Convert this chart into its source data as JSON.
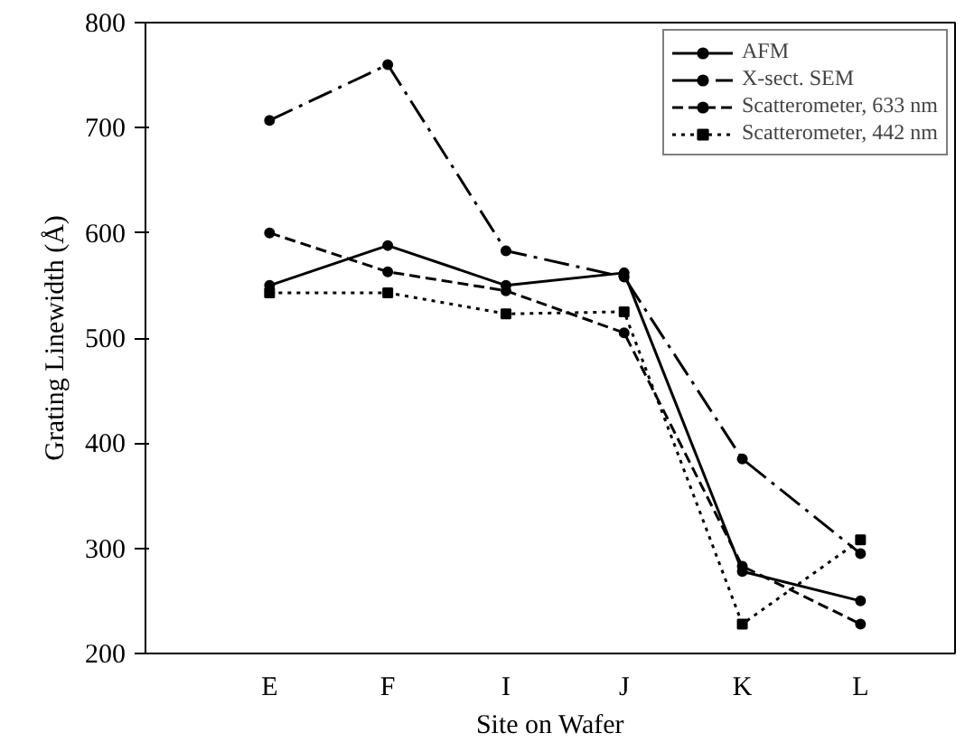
{
  "chart_data": {
    "type": "line",
    "xlabel": "Site on Wafer",
    "ylabel": "Grating Linewidth (Å)",
    "categories": [
      "E",
      "F",
      "I",
      "J",
      "K",
      "L"
    ],
    "ylim": [
      200,
      800
    ],
    "yticks": [
      200,
      300,
      400,
      500,
      600,
      700,
      800
    ],
    "grid": false,
    "legend": "top right",
    "series": [
      {
        "name": "AFM",
        "color": "#000000",
        "line_style": "solid",
        "marker": "circle",
        "values": [
          550,
          588,
          550,
          562,
          278,
          250
        ]
      },
      {
        "name": "X-sect. SEM",
        "color": "#000000",
        "line_style": "dashdot",
        "marker": "circle",
        "values": [
          707,
          760,
          583,
          558,
          385,
          295
        ]
      },
      {
        "name": "Scatterometer, 633 nm",
        "color": "#000000",
        "line_style": "dashed",
        "marker": "circle",
        "values": [
          600,
          563,
          545,
          505,
          283,
          228
        ]
      },
      {
        "name": "Scatterometer, 442 nm",
        "color": "#000000",
        "line_style": "dotted",
        "marker": "square",
        "values": [
          543,
          543,
          523,
          525,
          228,
          308
        ]
      }
    ]
  }
}
